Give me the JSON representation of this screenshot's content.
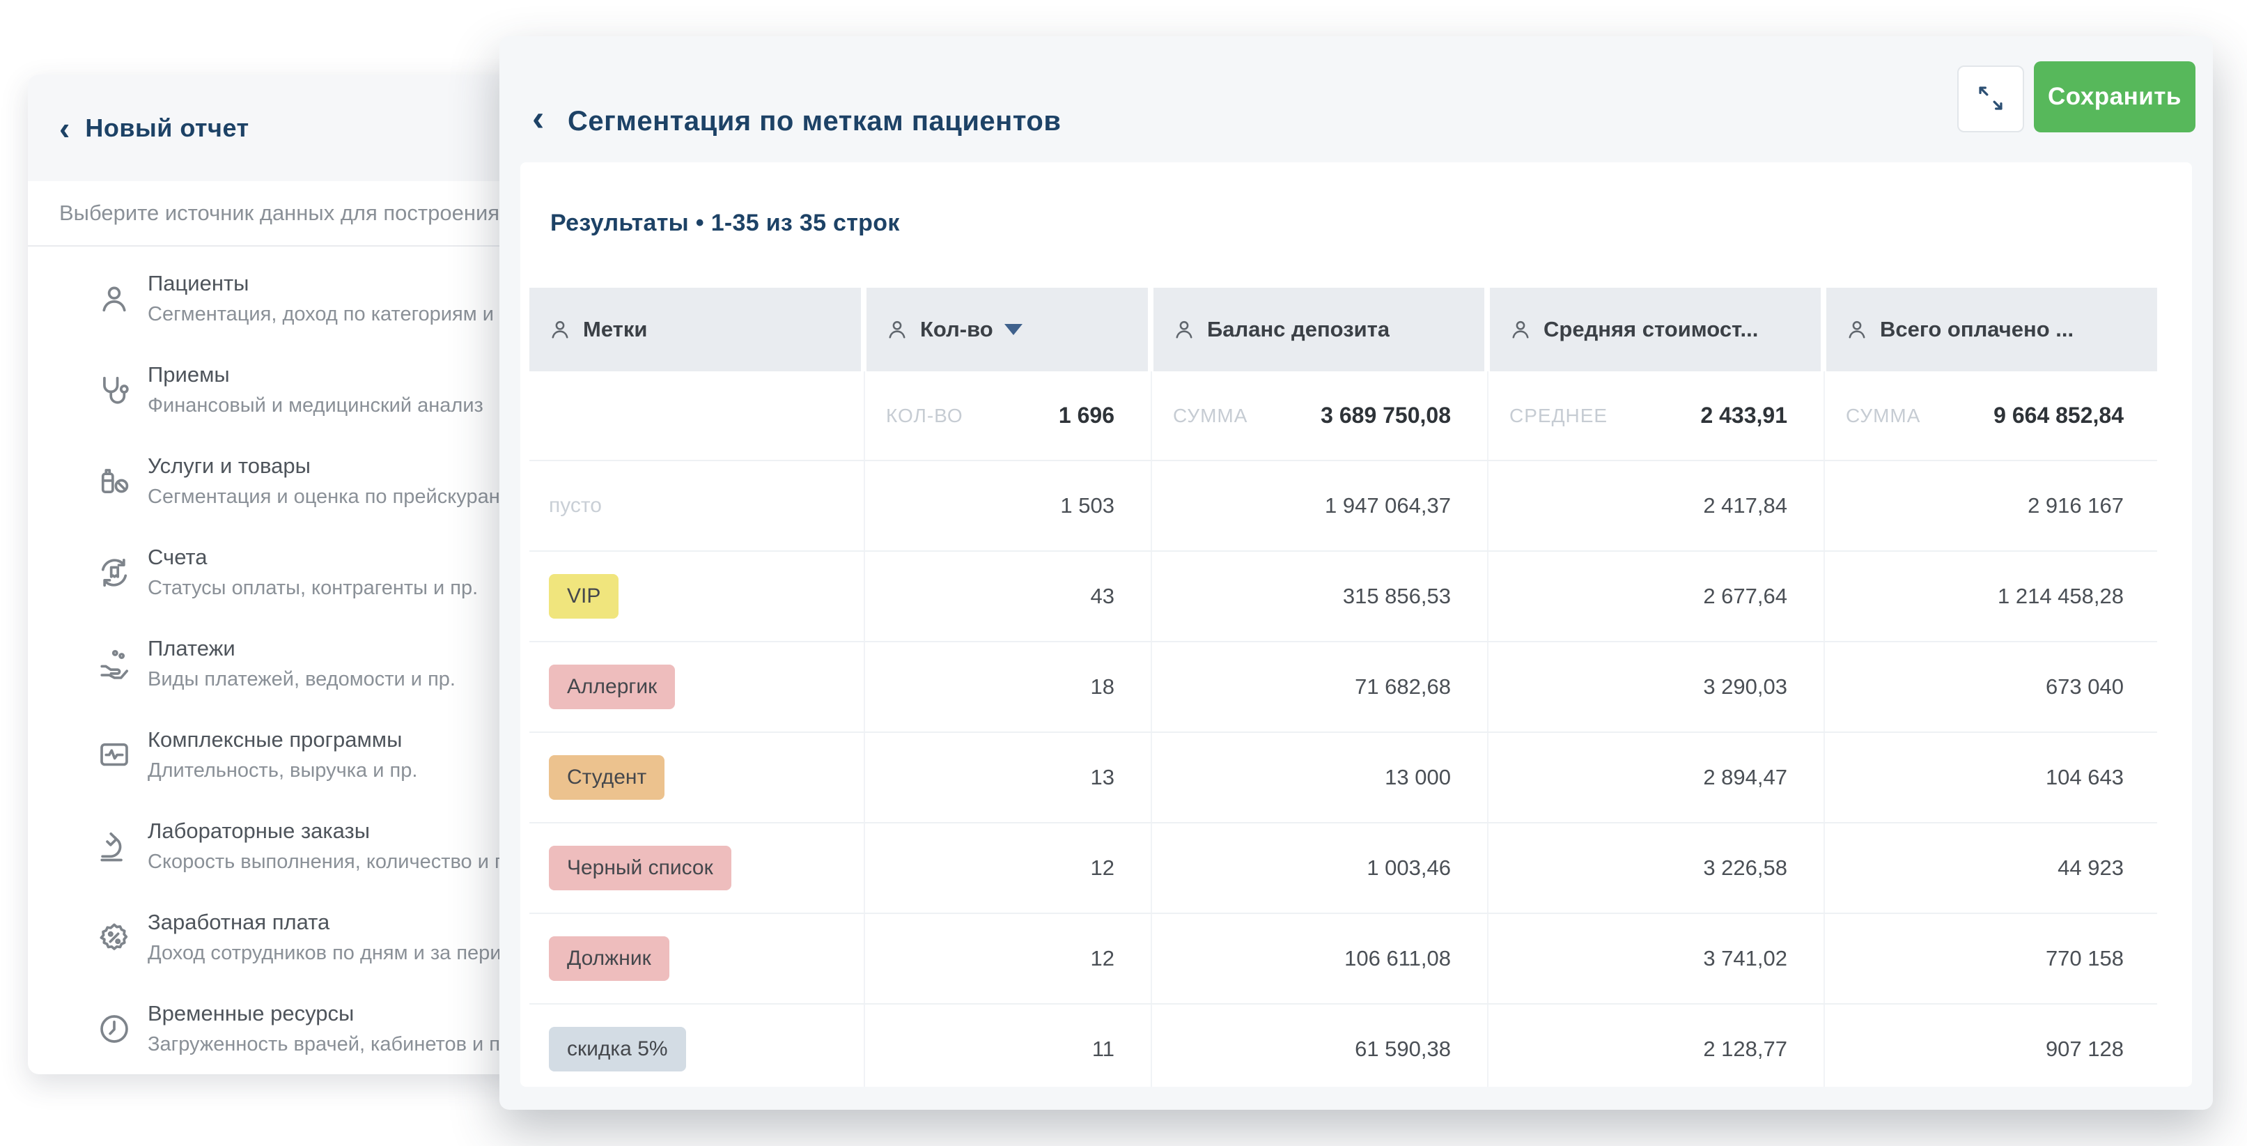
{
  "colors": {
    "navy": "#1d4266",
    "green": "#57b85b",
    "tag_yellow": "#f0e57d",
    "tag_pink": "#eebdbd",
    "tag_tan": "#ecc28e",
    "tag_bluegray": "#d3dce4"
  },
  "background_panel": {
    "back_icon": "‹",
    "title": "Новый отчет",
    "prompt": "Выберите источник данных для построения н",
    "sources": [
      {
        "icon": "patients-icon",
        "title": "Пациенты",
        "subtitle": "Сегментация, доход по категориям и пр."
      },
      {
        "icon": "stethoscope-icon",
        "title": "Приемы",
        "subtitle": "Финансовый и медицинский анализ"
      },
      {
        "icon": "services-icon",
        "title": "Услуги и товары",
        "subtitle": "Сегментация и оценка по прейскуранту"
      },
      {
        "icon": "invoices-icon",
        "title": "Счета",
        "subtitle": "Статусы оплаты, контрагенты и пр."
      },
      {
        "icon": "payments-icon",
        "title": "Платежи",
        "subtitle": "Виды платежей, ведомости и пр."
      },
      {
        "icon": "programs-icon",
        "title": "Комплексные программы",
        "subtitle": "Длительность, выручка и пр."
      },
      {
        "icon": "lab-icon",
        "title": "Лабораторные заказы",
        "subtitle": "Скорость выполнения, количество и пр."
      },
      {
        "icon": "salary-icon",
        "title": "Заработная плата",
        "subtitle": "Доход сотрудников по дням и за период"
      },
      {
        "icon": "clock-icon",
        "title": "Временные ресурсы",
        "subtitle": "Загруженность врачей, кабинетов и пр."
      }
    ]
  },
  "modal": {
    "back_icon": "‹",
    "title": "Сегментация по меткам пациентов",
    "expand_icon": "expand-icon",
    "save_label": "Сохранить",
    "results_title": "Результаты • 1-35 из 35 строк",
    "table": {
      "columns": [
        {
          "label": "Метки",
          "icon": "person-icon",
          "sorted": false
        },
        {
          "label": "Кол-во",
          "icon": "person-icon",
          "sorted": true
        },
        {
          "label": "Баланс депозита",
          "icon": "person-icon",
          "sorted": false
        },
        {
          "label": "Средняя стоимост...",
          "icon": "person-icon",
          "sorted": false
        },
        {
          "label": "Всего оплачено ...",
          "icon": "person-icon",
          "sorted": false
        }
      ],
      "summary": [
        {
          "label": "КОЛ-ВО",
          "value": "1 696"
        },
        {
          "label": "СУММА",
          "value": "3 689 750,08"
        },
        {
          "label": "СРЕДНЕЕ",
          "value": "2 433,91"
        },
        {
          "label": "СУММА",
          "value": "9 664 852,84"
        }
      ],
      "rows": [
        {
          "tag": "пусто",
          "tag_style": "empty",
          "values": [
            "1 503",
            "1 947 064,37",
            "2 417,84",
            "2 916 167"
          ]
        },
        {
          "tag": "VIP",
          "tag_style": "yellow",
          "values": [
            "43",
            "315 856,53",
            "2 677,64",
            "1 214 458,28"
          ]
        },
        {
          "tag": "Аллергик",
          "tag_style": "pink",
          "values": [
            "18",
            "71 682,68",
            "3 290,03",
            "673 040"
          ]
        },
        {
          "tag": "Студент",
          "tag_style": "tan",
          "values": [
            "13",
            "13 000",
            "2 894,47",
            "104 643"
          ]
        },
        {
          "tag": "Черный список",
          "tag_style": "pink",
          "values": [
            "12",
            "1 003,46",
            "3 226,58",
            "44 923"
          ]
        },
        {
          "tag": "Должник",
          "tag_style": "pink",
          "values": [
            "12",
            "106 611,08",
            "3 741,02",
            "770 158"
          ]
        },
        {
          "tag": "скидка 5%",
          "tag_style": "bluegray",
          "values": [
            "11",
            "61 590,38",
            "2 128,77",
            "907 128"
          ]
        }
      ]
    }
  }
}
